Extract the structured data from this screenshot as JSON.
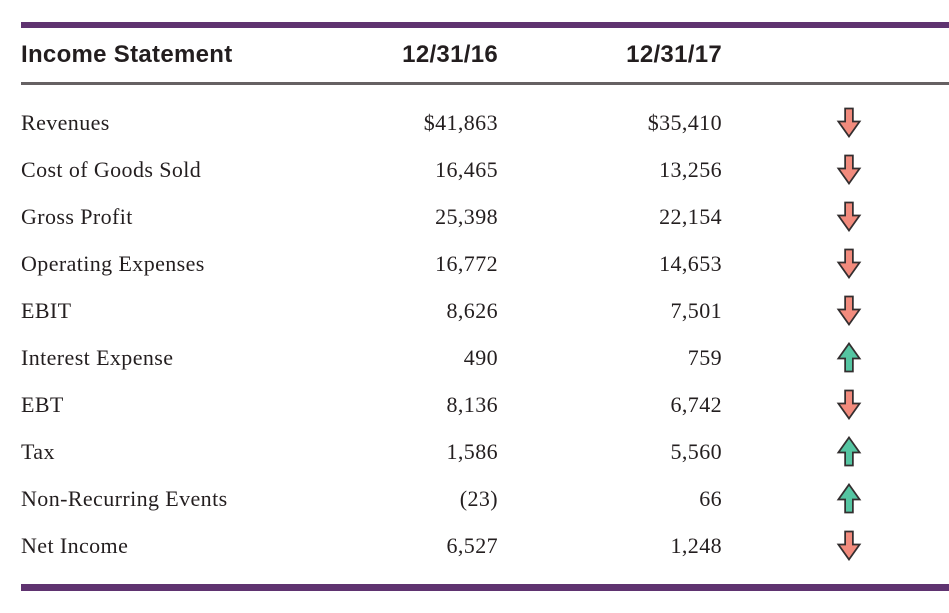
{
  "colors": {
    "accent_purple": "#5f3370",
    "header_rule_gray": "#666163",
    "text": "#231e1f",
    "down_arrow_fill": "#f28b7d",
    "up_arrow_fill": "#55c5a2",
    "arrow_outline": "#332e2f",
    "background": "#ffffff"
  },
  "table": {
    "title": "Income Statement",
    "col_headers": [
      "12/31/16",
      "12/31/17"
    ],
    "rows": [
      {
        "label": "Revenues",
        "val_2016": "$41,863",
        "val_2017": "$35,410",
        "change": "down"
      },
      {
        "label": "Cost of Goods Sold",
        "val_2016": "16,465",
        "val_2017": "13,256",
        "change": "down"
      },
      {
        "label": "Gross Profit",
        "val_2016": "25,398",
        "val_2017": "22,154",
        "change": "down"
      },
      {
        "label": "Operating Expenses",
        "val_2016": "16,772",
        "val_2017": "14,653",
        "change": "down"
      },
      {
        "label": "EBIT",
        "val_2016": "8,626",
        "val_2017": "7,501",
        "change": "down"
      },
      {
        "label": "Interest Expense",
        "val_2016": "490",
        "val_2017": "759",
        "change": "up"
      },
      {
        "label": "EBT",
        "val_2016": "8,136",
        "val_2017": "6,742",
        "change": "down"
      },
      {
        "label": "Tax",
        "val_2016": "1,586",
        "val_2017": "5,560",
        "change": "up"
      },
      {
        "label": "Non-Recurring Events",
        "val_2016": "(23)",
        "val_2017": "66",
        "change": "up"
      },
      {
        "label": "Net Income",
        "val_2016": "6,527",
        "val_2017": "1,248",
        "change": "down"
      }
    ]
  }
}
